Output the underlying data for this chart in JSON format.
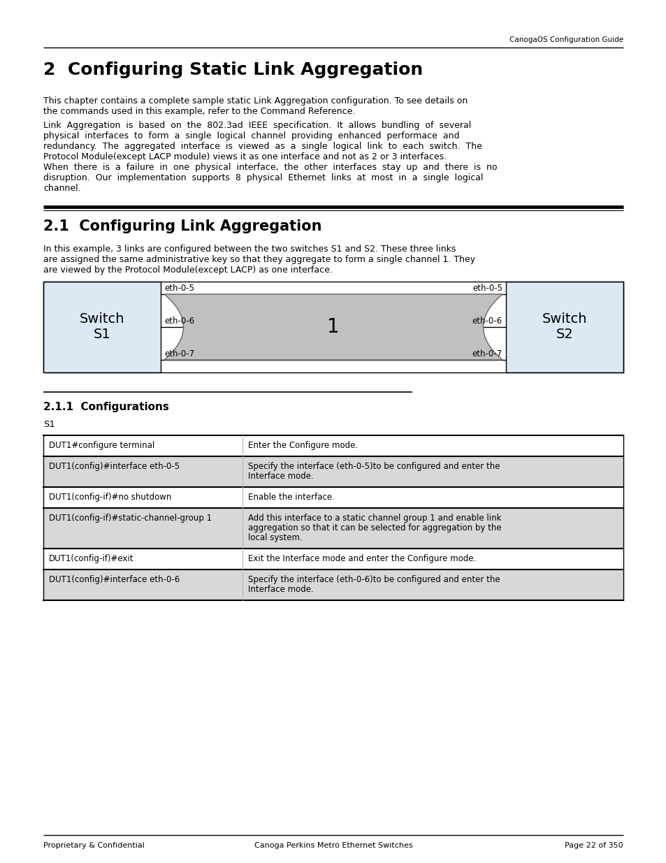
{
  "header_text": "CanogaOS Configuration Guide",
  "chapter_title": "2  Configuring Static Link Aggregation",
  "para1_lines": [
    "This chapter contains a complete sample static Link Aggregation configuration. To see details on",
    "the commands used in this example, refer to the Command Reference."
  ],
  "para2_lines": [
    "Link  Aggregation  is  based  on  the  802.3ad  IEEE  specification.  It  allows  bundling  of  several",
    "physical  interfaces  to  form  a  single  logical  channel  providing  enhanced  performace  and",
    "redundancy.  The  aggregated  interface  is  viewed  as  a  single  logical  link  to  each  switch.  The",
    "Protocol Module(except LACP module) views it as one interface and not as 2 or 3 interfaces.",
    "When  there  is  a  failure  in  one  physical  interface,  the  other  interfaces  stay  up  and  there  is  no",
    "disruption.  Our  implementation  supports  8  physical  Ethernet  links  at  most  in  a  single  logical",
    "channel."
  ],
  "section_title": "2.1  Configuring Link Aggregation",
  "section_para_lines": [
    "In this example, 3 links are configured between the two switches S1 and S2. These three links",
    "are assigned the same administrative key so that they aggregate to form a single channel 1. They",
    "are viewed by the Protocol Module(except LACP) as one interface."
  ],
  "subsection_title": "2.1.1  Configurations",
  "s1_label": "S1",
  "table_rows": [
    {
      "col1": "DUT1#configure terminal",
      "col2": [
        "Enter the Configure mode."
      ],
      "bg": "white"
    },
    {
      "col1": "DUT1(config)#interface eth-0-5",
      "col2": [
        "Specify the interface (eth-0-5)to be configured and enter the",
        "Interface mode."
      ],
      "bg": "gray"
    },
    {
      "col1": "DUT1(config-if)#no shutdown",
      "col2": [
        "Enable the interface."
      ],
      "bg": "white"
    },
    {
      "col1": "DUT1(config-if)#static-channel-group 1",
      "col2": [
        "Add this interface to a static channel group 1 and enable link",
        "aggregation so that it can be selected for aggregation by the",
        "local system."
      ],
      "bg": "gray"
    },
    {
      "col1": "DUT1(config-if)#exit",
      "col2": [
        "Exit the Interface mode and enter the Configure mode."
      ],
      "bg": "white"
    },
    {
      "col1": "DUT1(config)#interface eth-0-6",
      "col2": [
        "Specify the interface (eth-0-6)to be configured and enter the",
        "Interface mode."
      ],
      "bg": "gray"
    }
  ],
  "footer_left": "Proprietary & Confidential",
  "footer_center": "Canoga Perkins Metro Ethernet Switches",
  "footer_right": "Page 22 of 350",
  "bg_color": "#ffffff",
  "switch_box_color": "#dce9f5",
  "cable_color": "#c0c0c0",
  "table_bg_white": "#ffffff",
  "table_bg_gray": "#d8d8d8"
}
